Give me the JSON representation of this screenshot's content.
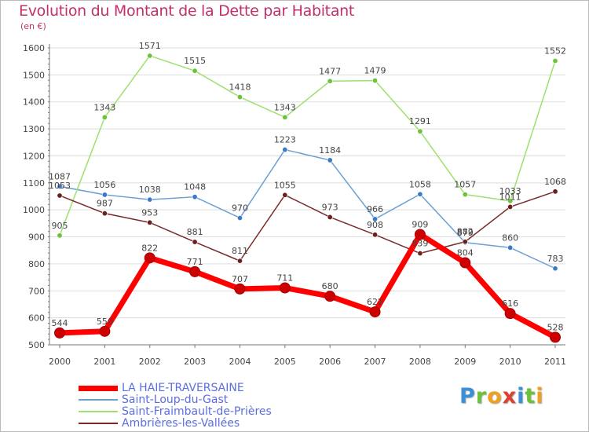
{
  "title": "Evolution du Montant de la Dette par Habitant",
  "unit": "(en €)",
  "brand": {
    "letters": [
      {
        "ch": "P",
        "color": "#3a8fd8"
      },
      {
        "ch": "r",
        "color": "#6ec23a"
      },
      {
        "ch": "o",
        "color": "#f0a020"
      },
      {
        "ch": "x",
        "color": "#e04030"
      },
      {
        "ch": "i",
        "color": "#3a8fd8"
      },
      {
        "ch": "t",
        "color": "#6ec23a"
      },
      {
        "ch": "i",
        "color": "#f0a020"
      }
    ]
  },
  "colors": {
    "grid": "#dddddd",
    "axis": "#777777",
    "tick_text": "#444444",
    "label_text": "#444444"
  },
  "chart_data": {
    "type": "line",
    "x": [
      "2000",
      "2001",
      "2002",
      "2003",
      "2004",
      "2005",
      "2006",
      "2007",
      "2008",
      "2009",
      "2010",
      "2011"
    ],
    "ylim": [
      500,
      1600
    ],
    "yticks": [
      500,
      600,
      700,
      800,
      900,
      1000,
      1100,
      1200,
      1300,
      1400,
      1500,
      1600
    ],
    "grid": true,
    "legend": "bottom-left",
    "series": [
      {
        "name": "LA HAIE-TRAVERSAINE",
        "color": "#ff0000",
        "point_color": "#cc0000",
        "width": 7,
        "values": [
          544,
          550,
          822,
          771,
          707,
          711,
          680,
          622,
          909,
          804,
          616,
          528
        ]
      },
      {
        "name": "Saint-Loup-du-Gast",
        "color": "#6a9fd4",
        "point_color": "#3a7ac8",
        "width": 1.5,
        "values": [
          1087,
          1056,
          1038,
          1048,
          970,
          1223,
          1184,
          966,
          1058,
          879,
          860,
          783
        ]
      },
      {
        "name": "Saint-Fraimbault-de-Prières",
        "color": "#9ee070",
        "point_color": "#6cc23a",
        "width": 1.5,
        "values": [
          905,
          1343,
          1571,
          1515,
          1418,
          1343,
          1477,
          1479,
          1291,
          1057,
          1033,
          1552
        ]
      },
      {
        "name": "Ambrières-les-Vallées",
        "color": "#7a2a2a",
        "point_color": "#6a2020",
        "width": 1.5,
        "values": [
          1053,
          987,
          953,
          881,
          811,
          1055,
          973,
          908,
          839,
          882,
          1011,
          1068
        ]
      }
    ]
  }
}
